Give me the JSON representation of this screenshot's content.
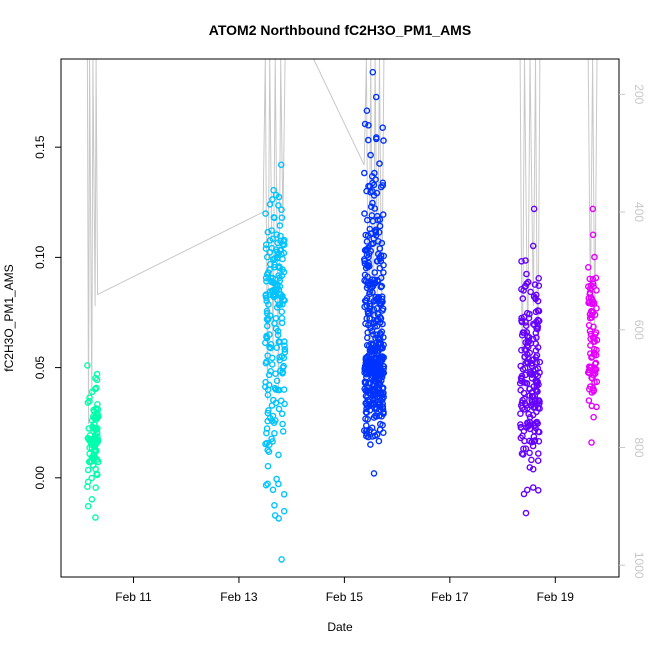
{
  "chart_data": {
    "type": "scatter",
    "title": "ATOM2 Northbound fC2H3O_PM1_AMS",
    "xlabel": "Date",
    "ylabel": "fC2H3O_PM1_AMS",
    "x_unit": "days",
    "xlim": [
      "2017-02-09T15:00",
      "2017-02-20T05:00"
    ],
    "ylim": [
      -0.045,
      0.19
    ],
    "x_ticks": [
      {
        "label": "Feb 11",
        "date": "2017-02-11"
      },
      {
        "label": "Feb 13",
        "date": "2017-02-13"
      },
      {
        "label": "Feb 15",
        "date": "2017-02-15"
      },
      {
        "label": "Feb 17",
        "date": "2017-02-17"
      },
      {
        "label": "Feb 19",
        "date": "2017-02-19"
      }
    ],
    "y_ticks": [
      0.0,
      0.05,
      0.1,
      0.15
    ],
    "y_tick_labels": [
      "0.00",
      "0.05",
      "0.10",
      "0.15"
    ],
    "right_axis": {
      "ylim": [
        1020,
        140
      ],
      "ticks": [
        200,
        400,
        600,
        800,
        1000
      ],
      "tick_labels": [
        "200",
        "400",
        "600",
        "800",
        "1000"
      ],
      "color": "#c8c8c8"
    },
    "grid": false,
    "legend": "none",
    "colors": {
      "group1": "#00ffaa",
      "group2": "#00c3ff",
      "group3": "#0033ff",
      "group4": "#6600ff",
      "group5": "#e600ff",
      "altitude_line": "#c8c8c8"
    },
    "groups": [
      {
        "color_key": "group1",
        "x_start": "2017-02-10T03:00",
        "x_end": "2017-02-10T08:00",
        "y_min": -0.018,
        "y_max": 0.051,
        "y_center": 0.02,
        "n": 90
      },
      {
        "color_key": "group2",
        "x_start": "2017-02-13T12:00",
        "x_end": "2017-02-13T21:00",
        "y_min": -0.037,
        "y_max": 0.142,
        "y_center": 0.075,
        "n": 200
      },
      {
        "color_key": "group3",
        "x_start": "2017-02-15T09:00",
        "x_end": "2017-02-15T18:00",
        "y_min": 0.002,
        "y_max": 0.184,
        "y_center": 0.055,
        "n": 420
      },
      {
        "color_key": "group4",
        "x_start": "2017-02-18T08:00",
        "x_end": "2017-02-18T17:00",
        "y_min": -0.016,
        "y_max": 0.122,
        "y_center": 0.045,
        "n": 200
      },
      {
        "color_key": "group5",
        "x_start": "2017-02-19T15:00",
        "x_end": "2017-02-19T19:00",
        "y_min": 0.016,
        "y_max": 0.122,
        "y_center": 0.06,
        "n": 90
      }
    ],
    "altitude_trace": [
      {
        "x": "2017-02-10T03:00",
        "alt": 140
      },
      {
        "x": "2017-02-10T03:30",
        "alt": 760
      },
      {
        "x": "2017-02-10T04:00",
        "alt": 140
      },
      {
        "x": "2017-02-10T05:00",
        "alt": 720
      },
      {
        "x": "2017-02-10T05:30",
        "alt": 140
      },
      {
        "x": "2017-02-10T06:30",
        "alt": 560
      },
      {
        "x": "2017-02-10T07:00",
        "alt": 140
      },
      {
        "x": "2017-02-10T07:40",
        "alt": 540
      },
      {
        "x": "2017-02-13T11:00",
        "alt": 400
      },
      {
        "x": "2017-02-13T12:00",
        "alt": 140
      },
      {
        "x": "2017-02-13T13:00",
        "alt": 720
      },
      {
        "x": "2017-02-13T14:00",
        "alt": 140
      },
      {
        "x": "2017-02-13T15:30",
        "alt": 640
      },
      {
        "x": "2017-02-13T16:30",
        "alt": 140
      },
      {
        "x": "2017-02-13T18:00",
        "alt": 700
      },
      {
        "x": "2017-02-13T19:00",
        "alt": 140
      },
      {
        "x": "2017-02-13T20:00",
        "alt": 420
      },
      {
        "x": "2017-02-13T21:00",
        "alt": 140
      },
      {
        "x": "2017-02-14T10:00",
        "alt": 140
      },
      {
        "x": "2017-02-15T09:00",
        "alt": 320
      },
      {
        "x": "2017-02-15T10:00",
        "alt": 140
      },
      {
        "x": "2017-02-15T11:00",
        "alt": 680
      },
      {
        "x": "2017-02-15T12:00",
        "alt": 140
      },
      {
        "x": "2017-02-15T13:00",
        "alt": 720
      },
      {
        "x": "2017-02-15T14:00",
        "alt": 140
      },
      {
        "x": "2017-02-15T15:00",
        "alt": 560
      },
      {
        "x": "2017-02-15T16:00",
        "alt": 140
      },
      {
        "x": "2017-02-15T17:00",
        "alt": 600
      },
      {
        "x": "2017-02-15T18:00",
        "alt": 140
      },
      {
        "x": "2017-02-18T08:00",
        "alt": 140
      },
      {
        "x": "2017-02-18T09:00",
        "alt": 700
      },
      {
        "x": "2017-02-18T10:00",
        "alt": 140
      },
      {
        "x": "2017-02-18T11:30",
        "alt": 640
      },
      {
        "x": "2017-02-18T12:30",
        "alt": 140
      },
      {
        "x": "2017-02-18T14:00",
        "alt": 560
      },
      {
        "x": "2017-02-18T15:00",
        "alt": 140
      },
      {
        "x": "2017-02-18T16:00",
        "alt": 720
      },
      {
        "x": "2017-02-18T17:00",
        "alt": 140
      },
      {
        "x": "2017-02-19T15:00",
        "alt": 140
      },
      {
        "x": "2017-02-19T16:00",
        "alt": 560
      },
      {
        "x": "2017-02-19T17:00",
        "alt": 140
      },
      {
        "x": "2017-02-19T18:00",
        "alt": 600
      },
      {
        "x": "2017-02-19T19:00",
        "alt": 140
      }
    ]
  }
}
